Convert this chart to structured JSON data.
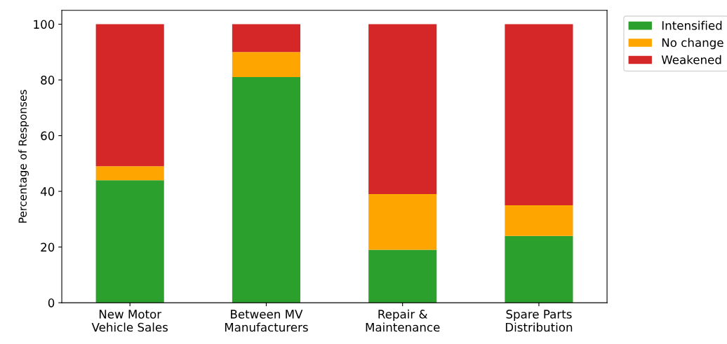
{
  "chart_data": {
    "type": "bar",
    "stacked": true,
    "ylabel": "Percentage of Responses",
    "categories": [
      "New Motor\nVehicle Sales",
      "Between MV\nManufacturers",
      "Repair &\nMaintenance",
      "Spare Parts\nDistribution"
    ],
    "series": [
      {
        "name": "Intensified",
        "color": "#2ca02c",
        "values": [
          44,
          81,
          19,
          24
        ]
      },
      {
        "name": "No change",
        "color": "#ffa500",
        "values": [
          5,
          9,
          20,
          11
        ]
      },
      {
        "name": "Weakened",
        "color": "#d62728",
        "values": [
          51,
          10,
          61,
          65
        ]
      }
    ],
    "ylim": [
      0,
      105
    ],
    "yticks": [
      0,
      20,
      40,
      60,
      80,
      100
    ],
    "grid": false,
    "legend": "top right"
  }
}
